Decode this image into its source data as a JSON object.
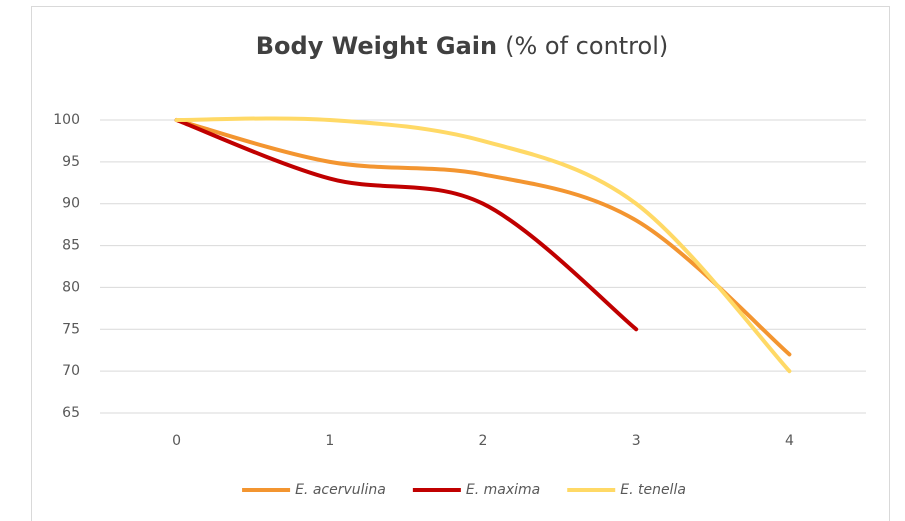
{
  "chart_data": {
    "type": "line",
    "title": "Body Weight Gain",
    "title_unit": "(% of control)",
    "x": [
      0,
      1,
      2,
      3,
      4
    ],
    "xlim": [
      -0.5,
      4.5
    ],
    "xticks": [
      0,
      1,
      2,
      3,
      4
    ],
    "ylim": [
      65,
      100
    ],
    "yticks": [
      65,
      70,
      75,
      80,
      85,
      90,
      95,
      100
    ],
    "grid": true,
    "smooth": true,
    "legend": "bottom",
    "series": [
      {
        "name": "E. acervulina",
        "color": "#f39530",
        "values": [
          100,
          95,
          93.5,
          88,
          72
        ]
      },
      {
        "name": "E. maxima",
        "color": "#c00000",
        "values": [
          100,
          93,
          90,
          75,
          null
        ]
      },
      {
        "name": "E. tenella",
        "color": "#ffd966",
        "values": [
          100,
          100,
          97.5,
          90,
          70
        ]
      }
    ]
  }
}
